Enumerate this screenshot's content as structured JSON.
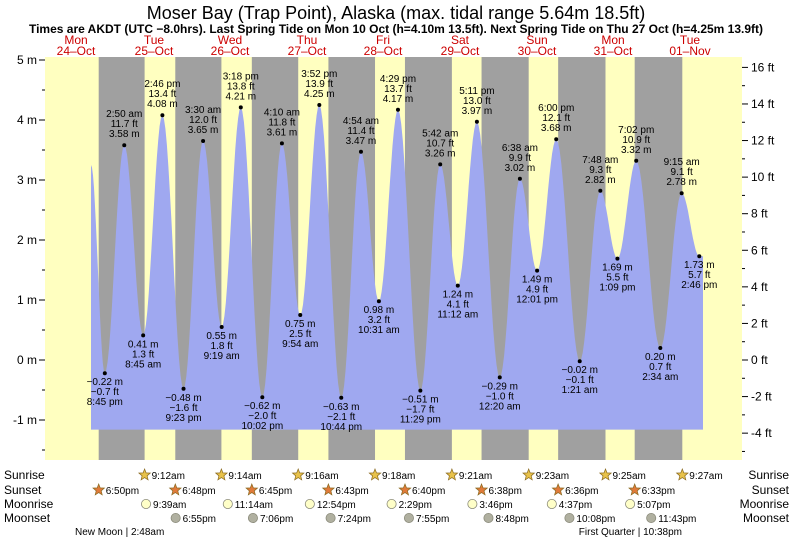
{
  "title": "Moser Bay (Trap Point), Alaska (max. tidal range 5.64m 18.5ft)",
  "subtitle": "Times are AKDT (UTC −8.0hrs). Last Spring Tide on Mon 10 Oct (h=4.10m 13.5ft). Next Spring Tide on Thu 27 Oct (h=4.25m 13.9ft)",
  "colors": {
    "night": "#a0a0a0",
    "day": "#ffffc0",
    "tide_fill": "#9fa8f0",
    "day_label": "#cc0000",
    "sun": "#e8c24a",
    "sunset": "#e07a3a",
    "moonrise": "#ffffc8",
    "moonset": "#b0b0a0"
  },
  "chart_data": {
    "type": "area",
    "ylim_m": [
      -1.6,
      5
    ],
    "left_ticks_m": [
      "-1 m",
      "0 m",
      "1 m",
      "2 m",
      "3 m",
      "4 m",
      "5 m"
    ],
    "right_ticks_ft": [
      "-4 ft",
      "-2 ft",
      "0 ft",
      "2 ft",
      "4 ft",
      "6 ft",
      "8 ft",
      "10 ft",
      "12 ft",
      "14 ft",
      "16 ft"
    ],
    "days": [
      {
        "dow": "Mon",
        "date": "24–Oct",
        "mid": 76
      },
      {
        "dow": "Tue",
        "date": "25–Oct",
        "mid": 154
      },
      {
        "dow": "Wed",
        "date": "26–Oct",
        "mid": 230
      },
      {
        "dow": "Thu",
        "date": "27–Oct",
        "mid": 307
      },
      {
        "dow": "Fri",
        "date": "28–Oct",
        "mid": 383
      },
      {
        "dow": "Sat",
        "date": "29–Oct",
        "mid": 460
      },
      {
        "dow": "Sun",
        "date": "30–Oct",
        "mid": 537
      },
      {
        "dow": "Mon",
        "date": "31–Oct",
        "mid": 613
      },
      {
        "dow": "Tue",
        "date": "01–Nov",
        "mid": 690
      }
    ],
    "tides": [
      {
        "type": "low",
        "m": "−0.22 m",
        "ft": "−0.7 ft",
        "time": "8:45 pm",
        "h": -0.22
      },
      {
        "type": "high",
        "m": "3.58 m",
        "ft": "11.7 ft",
        "time": "2:50 am",
        "h": 3.58
      },
      {
        "type": "low",
        "m": "0.41 m",
        "ft": "1.3 ft",
        "time": "8:45 am",
        "h": 0.41
      },
      {
        "type": "high",
        "m": "4.08 m",
        "ft": "13.4 ft",
        "time": "2:46 pm",
        "h": 4.08
      },
      {
        "type": "low",
        "m": "−0.48 m",
        "ft": "−1.6 ft",
        "time": "9:23 pm",
        "h": -0.48
      },
      {
        "type": "high",
        "m": "3.65 m",
        "ft": "12.0 ft",
        "time": "3:30 am",
        "h": 3.65
      },
      {
        "type": "low",
        "m": "0.55 m",
        "ft": "1.8 ft",
        "time": "9:19 am",
        "h": 0.55
      },
      {
        "type": "high",
        "m": "4.21 m",
        "ft": "13.8 ft",
        "time": "3:18 pm",
        "h": 4.21
      },
      {
        "type": "low",
        "m": "−0.62 m",
        "ft": "−2.0 ft",
        "time": "10:02 pm",
        "h": -0.62
      },
      {
        "type": "high",
        "m": "3.61 m",
        "ft": "11.8 ft",
        "time": "4:10 am",
        "h": 3.61
      },
      {
        "type": "low",
        "m": "0.75 m",
        "ft": "2.5 ft",
        "time": "9:54 am",
        "h": 0.75
      },
      {
        "type": "high",
        "m": "4.25 m",
        "ft": "13.9 ft",
        "time": "3:52 pm",
        "h": 4.25
      },
      {
        "type": "low",
        "m": "−0.63 m",
        "ft": "−2.1 ft",
        "time": "10:44 pm",
        "h": -0.63
      },
      {
        "type": "high",
        "m": "3.47 m",
        "ft": "11.4 ft",
        "time": "4:54 am",
        "h": 3.47
      },
      {
        "type": "low",
        "m": "0.98 m",
        "ft": "3.2 ft",
        "time": "10:31 am",
        "h": 0.98
      },
      {
        "type": "high",
        "m": "4.17 m",
        "ft": "13.7 ft",
        "time": "4:29 pm",
        "h": 4.17
      },
      {
        "type": "low",
        "m": "−0.51 m",
        "ft": "−1.7 ft",
        "time": "11:29 pm",
        "h": -0.51
      },
      {
        "type": "high",
        "m": "3.26 m",
        "ft": "10.7 ft",
        "time": "5:42 am",
        "h": 3.26
      },
      {
        "type": "low",
        "m": "1.24 m",
        "ft": "4.1 ft",
        "time": "11:12 am",
        "h": 1.24
      },
      {
        "type": "high",
        "m": "3.97 m",
        "ft": "13.0 ft",
        "time": "5:11 pm",
        "h": 3.97
      },
      {
        "type": "low",
        "m": "−0.29 m",
        "ft": "−1.0 ft",
        "time": "12:20 am",
        "h": -0.29
      },
      {
        "type": "high",
        "m": "3.02 m",
        "ft": "9.9 ft",
        "time": "6:38 am",
        "h": 3.02
      },
      {
        "type": "low",
        "m": "1.49 m",
        "ft": "4.9 ft",
        "time": "12:01 pm",
        "h": 1.49
      },
      {
        "type": "high",
        "m": "3.68 m",
        "ft": "12.1 ft",
        "time": "6:00 pm",
        "h": 3.68
      },
      {
        "type": "low",
        "m": "−0.02 m",
        "ft": "−0.1 ft",
        "time": "1:21 am",
        "h": -0.02
      },
      {
        "type": "high",
        "m": "2.82 m",
        "ft": "9.3 ft",
        "time": "7:48 am",
        "h": 2.82
      },
      {
        "type": "low",
        "m": "1.69 m",
        "ft": "5.5 ft",
        "time": "1:09 pm",
        "h": 1.69
      },
      {
        "type": "high",
        "m": "3.32 m",
        "ft": "10.9 ft",
        "time": "7:02 pm",
        "h": 3.32
      },
      {
        "type": "low",
        "m": "0.20 m",
        "ft": "0.7 ft",
        "time": "2:34 am",
        "h": 0.2
      },
      {
        "type": "high",
        "m": "2.78 m",
        "ft": "9.1 ft",
        "time": "9:15 am",
        "h": 2.78
      },
      {
        "type": "low",
        "m": "1.73 m",
        "ft": "5.7 ft",
        "time": "2:46 pm",
        "h": 1.73
      }
    ]
  },
  "rows": {
    "sunrise": "Sunrise",
    "sunset": "Sunset",
    "moonrise": "Moonrise",
    "moonset": "Moonset"
  },
  "sunrises": [
    "9:12am",
    "9:14am",
    "9:16am",
    "9:18am",
    "9:21am",
    "9:23am",
    "9:25am",
    "9:27am"
  ],
  "sunsets": [
    "6:50pm",
    "6:48pm",
    "6:45pm",
    "6:43pm",
    "6:40pm",
    "6:38pm",
    "6:36pm",
    "6:33pm"
  ],
  "moonrises": [
    "9:39am",
    "11:14am",
    "12:54pm",
    "2:29pm",
    "3:46pm",
    "4:37pm",
    "5:07pm"
  ],
  "moonsets": [
    "6:55pm",
    "7:06pm",
    "7:24pm",
    "7:55pm",
    "8:48pm",
    "10:08pm",
    "11:43pm"
  ],
  "moon_phases": [
    {
      "text": "New Moon | 2:48am"
    },
    {
      "text": "First Quarter | 10:38pm"
    }
  ]
}
